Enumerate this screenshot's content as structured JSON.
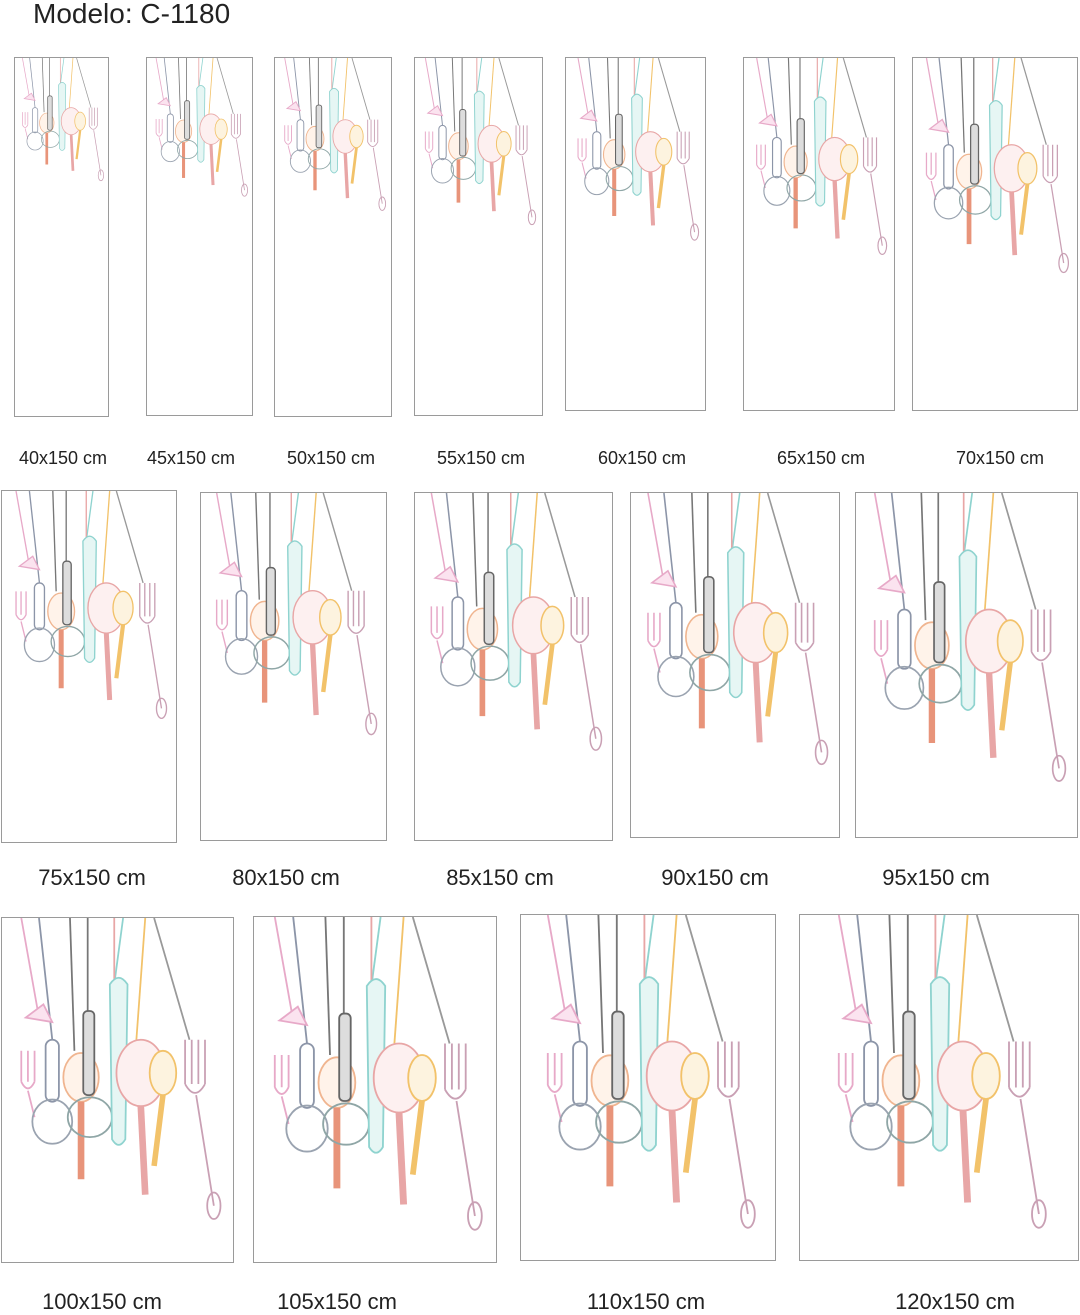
{
  "title": "Modelo: C-1180",
  "sizes": [
    "40x150 cm",
    "45x150 cm",
    "50x150 cm",
    "55x150 cm",
    "60x150 cm",
    "65x150 cm",
    "70x150 cm",
    "75x150 cm",
    "80x150 cm",
    "85x150 cm",
    "90x150 cm",
    "95x150 cm",
    "100x150 cm",
    "105x150 cm",
    "110x150 cm",
    "120x150 cm"
  ]
}
